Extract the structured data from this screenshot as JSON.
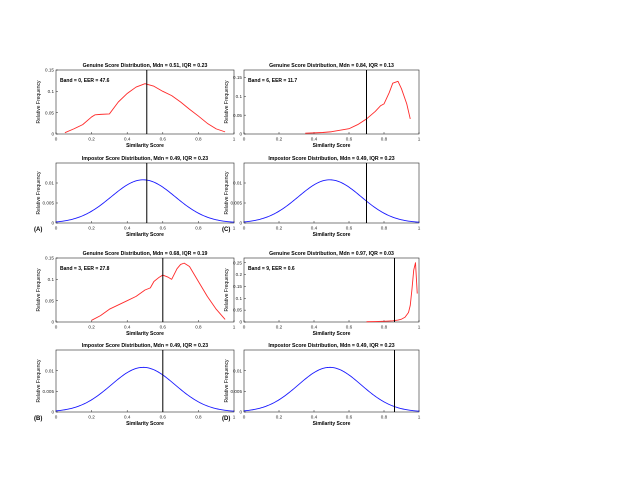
{
  "chart_data": [
    {
      "type": "line",
      "panel": "(A)",
      "kind": "genuine",
      "title": "Genuine Score Distribution, Mdn = 0.51, IQR = 0.23",
      "annotation": "Band = 0, EER = 47.6",
      "xlabel": "Similarity Score",
      "ylabel": "Relative Frequency",
      "xlim": [
        0,
        1
      ],
      "ylim": [
        0,
        0.15
      ],
      "xticks": [
        "0",
        "0.2",
        "0.4",
        "0.6",
        "0.8",
        "1"
      ],
      "yticks": [
        "0",
        "0.05",
        "0.1",
        "0.15"
      ],
      "threshold": 0.51,
      "color": "#ff2a2a",
      "series": [
        {
          "x": [
            0.05,
            0.1,
            0.15,
            0.2,
            0.22,
            0.25,
            0.3,
            0.35,
            0.4,
            0.45,
            0.5,
            0.55,
            0.6,
            0.65,
            0.7,
            0.75,
            0.8,
            0.85,
            0.9,
            0.95
          ],
          "y": [
            0.003,
            0.012,
            0.022,
            0.04,
            0.045,
            0.046,
            0.047,
            0.075,
            0.095,
            0.11,
            0.118,
            0.112,
            0.1,
            0.09,
            0.075,
            0.058,
            0.042,
            0.025,
            0.012,
            0.005
          ]
        }
      ]
    },
    {
      "type": "line",
      "panel": "(A)",
      "kind": "impostor",
      "title": "Impostor Score Distribution, Mdn = 0.49, IQR = 0.23",
      "annotation": "",
      "xlabel": "Similarity Score",
      "ylabel": "Relative Frequency",
      "xlim": [
        0,
        1
      ],
      "ylim": [
        0,
        0.015
      ],
      "xticks": [
        "0",
        "0.2",
        "0.4",
        "0.6",
        "0.8",
        "1"
      ],
      "yticks": [
        "0",
        "0.005",
        "0.01"
      ],
      "threshold": 0.51,
      "color": "#1a1aff",
      "gauss": {
        "mu": 0.49,
        "sigma": 0.18,
        "peak": 0.0108
      }
    },
    {
      "type": "line",
      "panel": "(C)",
      "kind": "genuine",
      "title": "Genuine Score Distribution, Mdn = 0.84, IQR = 0.13",
      "annotation": "Band = 6, EER = 11.7",
      "xlabel": "Similarity Score",
      "ylabel": "Relative Frequency",
      "xlim": [
        0,
        1
      ],
      "ylim": [
        0,
        0.17
      ],
      "xticks": [
        "0",
        "0.2",
        "0.4",
        "0.6",
        "0.8",
        "1"
      ],
      "yticks": [
        "0",
        "0.05",
        "0.1",
        "0.15"
      ],
      "threshold": 0.7,
      "color": "#ff2a2a",
      "series": [
        {
          "x": [
            0.35,
            0.4,
            0.45,
            0.5,
            0.55,
            0.6,
            0.65,
            0.7,
            0.75,
            0.78,
            0.8,
            0.83,
            0.85,
            0.88,
            0.9,
            0.93,
            0.95
          ],
          "y": [
            0.002,
            0.003,
            0.004,
            0.006,
            0.01,
            0.014,
            0.025,
            0.04,
            0.06,
            0.075,
            0.08,
            0.11,
            0.135,
            0.14,
            0.12,
            0.08,
            0.04
          ]
        }
      ]
    },
    {
      "type": "line",
      "panel": "(C)",
      "kind": "impostor",
      "title": "Impostor Score Distribution, Mdn = 0.49, IQR = 0.23",
      "annotation": "",
      "xlabel": "Similarity Score",
      "ylabel": "Relative Frequency",
      "xlim": [
        0,
        1
      ],
      "ylim": [
        0,
        0.015
      ],
      "xticks": [
        "0",
        "0.2",
        "0.4",
        "0.6",
        "0.8",
        "1"
      ],
      "yticks": [
        "0",
        "0.005",
        "0.01"
      ],
      "threshold": 0.7,
      "color": "#1a1aff",
      "gauss": {
        "mu": 0.49,
        "sigma": 0.18,
        "peak": 0.0108
      }
    },
    {
      "type": "line",
      "panel": "(B)",
      "kind": "genuine",
      "title": "Genuine Score Distribution, Mdn = 0.68, IQR = 0.19",
      "annotation": "Band = 3, EER = 27.8",
      "xlabel": "Similarity Score",
      "ylabel": "Relative Frequency",
      "xlim": [
        0,
        1
      ],
      "ylim": [
        0,
        0.15
      ],
      "xticks": [
        "0",
        "0.2",
        "0.4",
        "0.6",
        "0.8",
        "1"
      ],
      "yticks": [
        "0",
        "0.05",
        "0.1",
        "0.15"
      ],
      "threshold": 0.6,
      "color": "#ff2a2a",
      "series": [
        {
          "x": [
            0.2,
            0.25,
            0.3,
            0.35,
            0.4,
            0.45,
            0.5,
            0.53,
            0.55,
            0.58,
            0.6,
            0.63,
            0.65,
            0.68,
            0.7,
            0.72,
            0.75,
            0.8,
            0.85,
            0.9,
            0.95
          ],
          "y": [
            0.004,
            0.015,
            0.03,
            0.04,
            0.05,
            0.06,
            0.075,
            0.08,
            0.095,
            0.105,
            0.11,
            0.105,
            0.1,
            0.125,
            0.135,
            0.138,
            0.13,
            0.095,
            0.06,
            0.03,
            0.006
          ]
        }
      ]
    },
    {
      "type": "line",
      "panel": "(B)",
      "kind": "impostor",
      "title": "Impostor Score Distribution, Mdn = 0.49, IQR = 0.23",
      "annotation": "",
      "xlabel": "Similarity Score",
      "ylabel": "Relative Frequency",
      "xlim": [
        0,
        1
      ],
      "ylim": [
        0,
        0.015
      ],
      "xticks": [
        "0",
        "0.2",
        "0.4",
        "0.6",
        "0.8",
        "1"
      ],
      "yticks": [
        "0",
        "0.005",
        "0.01"
      ],
      "threshold": 0.6,
      "color": "#1a1aff",
      "gauss": {
        "mu": 0.49,
        "sigma": 0.18,
        "peak": 0.0108
      }
    },
    {
      "type": "line",
      "panel": "(D)",
      "kind": "genuine",
      "title": "Genuine Score Distribution, Mdn = 0.97, IQR = 0.03",
      "annotation": "Band = 9, EER = 0.6",
      "xlabel": "Similarity Score",
      "ylabel": "Relative Frequency",
      "xlim": [
        0,
        1
      ],
      "ylim": [
        0,
        0.27
      ],
      "xticks": [
        "0",
        "0.2",
        "0.4",
        "0.6",
        "0.8",
        "1"
      ],
      "yticks": [
        "0",
        "0.05",
        "0.1",
        "0.15",
        "0.2",
        "0.25"
      ],
      "threshold": 0.86,
      "color": "#ff2a2a",
      "series": [
        {
          "x": [
            0.7,
            0.75,
            0.8,
            0.85,
            0.88,
            0.9,
            0.92,
            0.94,
            0.95,
            0.96,
            0.97,
            0.98,
            0.99
          ],
          "y": [
            0.001,
            0.002,
            0.003,
            0.005,
            0.008,
            0.012,
            0.02,
            0.04,
            0.07,
            0.14,
            0.22,
            0.25,
            0.12
          ]
        }
      ]
    },
    {
      "type": "line",
      "panel": "(D)",
      "kind": "impostor",
      "title": "Impostor Score Distribution, Mdn = 0.49, IQR = 0.23",
      "annotation": "",
      "xlabel": "Similarity Score",
      "ylabel": "Relative Frequency",
      "xlim": [
        0,
        1
      ],
      "ylim": [
        0,
        0.015
      ],
      "xticks": [
        "0",
        "0.2",
        "0.4",
        "0.6",
        "0.8",
        "1"
      ],
      "yticks": [
        "0",
        "0.005",
        "0.01"
      ],
      "threshold": 0.86,
      "color": "#1a1aff",
      "gauss": {
        "mu": 0.49,
        "sigma": 0.18,
        "peak": 0.0108
      }
    }
  ]
}
